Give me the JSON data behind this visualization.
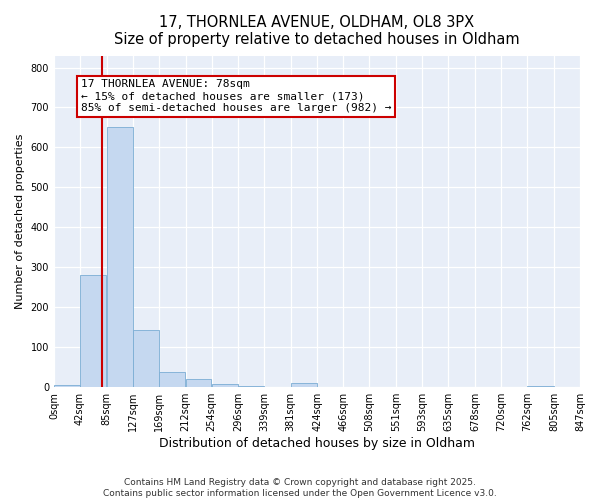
{
  "title_line1": "17, THORNLEA AVENUE, OLDHAM, OL8 3PX",
  "title_line2": "Size of property relative to detached houses in Oldham",
  "xlabel": "Distribution of detached houses by size in Oldham",
  "ylabel": "Number of detached properties",
  "bar_values": [
    5,
    280,
    650,
    143,
    38,
    20,
    8,
    2,
    0,
    10,
    0,
    0,
    0,
    0,
    0,
    0,
    0,
    0,
    2,
    0
  ],
  "bin_edges": [
    0,
    42,
    85,
    127,
    169,
    212,
    254,
    296,
    339,
    381,
    424,
    466,
    508,
    551,
    593,
    635,
    678,
    720,
    762,
    805,
    847
  ],
  "bar_color": "#c5d8f0",
  "bar_edge_color": "#7badd4",
  "vline_color": "#cc0000",
  "vline_x": 78,
  "annotation_text": "17 THORNLEA AVENUE: 78sqm\n← 15% of detached houses are smaller (173)\n85% of semi-detached houses are larger (982) →",
  "annotation_box_color": "#ffffff",
  "annotation_edge_color": "#cc0000",
  "ylim": [
    0,
    830
  ],
  "yticks": [
    0,
    100,
    200,
    300,
    400,
    500,
    600,
    700,
    800
  ],
  "xtick_labels": [
    "0sqm",
    "42sqm",
    "85sqm",
    "127sqm",
    "169sqm",
    "212sqm",
    "254sqm",
    "296sqm",
    "339sqm",
    "381sqm",
    "424sqm",
    "466sqm",
    "508sqm",
    "551sqm",
    "593sqm",
    "635sqm",
    "678sqm",
    "720sqm",
    "762sqm",
    "805sqm",
    "847sqm"
  ],
  "bg_color": "#e8eef8",
  "grid_color": "#ffffff",
  "footer_text": "Contains HM Land Registry data © Crown copyright and database right 2025.\nContains public sector information licensed under the Open Government Licence v3.0.",
  "title_fontsize": 10.5,
  "tick_fontsize": 7,
  "annotation_fontsize": 8,
  "xlabel_fontsize": 9,
  "ylabel_fontsize": 8,
  "footer_fontsize": 6.5
}
